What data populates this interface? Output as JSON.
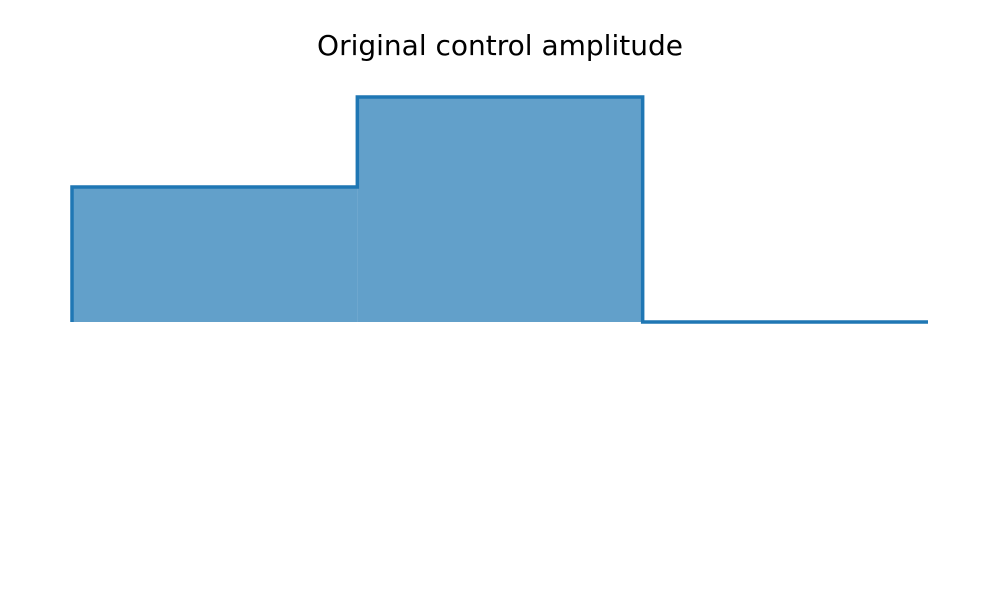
{
  "chart_data": {
    "type": "step",
    "title": "Original control amplitude",
    "x": [
      0,
      1,
      2
    ],
    "values": [
      0.6,
      1.0,
      0
    ],
    "xlim": [
      0,
      3
    ],
    "ylim": [
      -1.1,
      1.1
    ],
    "color": "#1f77b4",
    "fill": true,
    "grid": false
  }
}
